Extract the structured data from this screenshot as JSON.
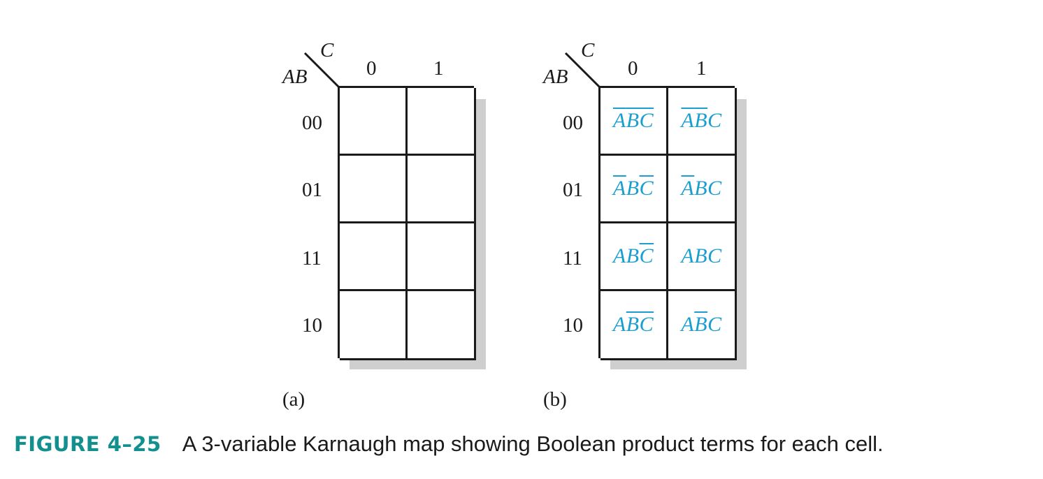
{
  "maps": [
    {
      "id": "a",
      "row_var": "AB",
      "col_var": "C",
      "col_labels": [
        "0",
        "1"
      ],
      "row_labels": [
        "00",
        "01",
        "11",
        "10"
      ],
      "cells": [
        [
          "",
          ""
        ],
        [
          "",
          ""
        ],
        [
          "",
          ""
        ],
        [
          "",
          ""
        ]
      ],
      "sub_label": "(a)"
    },
    {
      "id": "b",
      "row_var": "AB",
      "col_var": "C",
      "col_labels": [
        "0",
        "1"
      ],
      "row_labels": [
        "00",
        "01",
        "11",
        "10"
      ],
      "cells": [
        [
          [
            [
              "A",
              true
            ],
            [
              "B",
              true
            ],
            [
              "C",
              true
            ]
          ],
          [
            [
              "A",
              true
            ],
            [
              "B",
              true
            ],
            [
              "C",
              false
            ]
          ]
        ],
        [
          [
            [
              "A",
              true
            ],
            [
              "B",
              false
            ],
            [
              "C",
              true
            ]
          ],
          [
            [
              "A",
              true
            ],
            [
              "B",
              false
            ],
            [
              "C",
              false
            ]
          ]
        ],
        [
          [
            [
              "A",
              false
            ],
            [
              "B",
              false
            ],
            [
              "C",
              true
            ]
          ],
          [
            [
              "A",
              false
            ],
            [
              "B",
              false
            ],
            [
              "C",
              false
            ]
          ]
        ],
        [
          [
            [
              "A",
              false
            ],
            [
              "B",
              true
            ],
            [
              "C",
              true
            ]
          ],
          [
            [
              "A",
              false
            ],
            [
              "B",
              true
            ],
            [
              "C",
              false
            ]
          ]
        ]
      ],
      "sub_label": "(b)"
    }
  ],
  "term_color": "#1a9ed0",
  "caption": {
    "figure": "FIGURE 4–25",
    "text": "A 3-variable Karnaugh map showing Boolean product terms for each cell.",
    "figure_color": "#12908f"
  }
}
